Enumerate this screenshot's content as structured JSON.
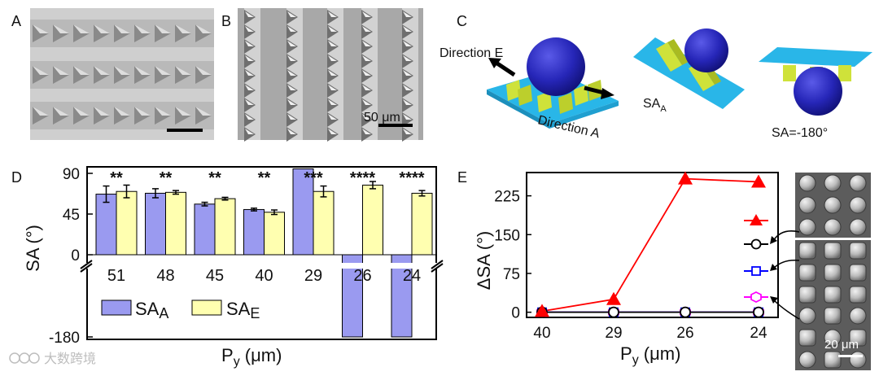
{
  "panels": {
    "a": "A",
    "b": "B",
    "c": "C",
    "d": "D",
    "e": "E"
  },
  "micrograph_b": {
    "scale_label": "50 μm"
  },
  "micrograph_e": {
    "scale_label": "20 μm"
  },
  "schematic": {
    "direction_e": "Direction E",
    "direction_a": "Direction A",
    "sa_a_main": "SA",
    "sa_a_sub": "A",
    "sa_minus": "SA=-180°"
  },
  "watermark": "大数跨境",
  "colors": {
    "sa_a": "#9a9af0",
    "sa_e": "#ffffb0",
    "red": "#ff0000",
    "black": "#000000",
    "blue": "#0000ff",
    "magenta": "#ff00ff",
    "chip_blue": "#29b6e8",
    "pillar_green": "#cfe23a",
    "sphere": "#2828c8"
  },
  "chart_data": [
    {
      "type": "bar",
      "panel": "D",
      "categories": [
        "51",
        "48",
        "45",
        "40",
        "29",
        "26",
        "24"
      ],
      "series": [
        {
          "name": "SA_A",
          "values": [
            67,
            68,
            56,
            50,
            95,
            -180,
            -180
          ],
          "errors": [
            9,
            5,
            2,
            1.5,
            0,
            0,
            0
          ]
        },
        {
          "name": "SA_E",
          "values": [
            70,
            69,
            62,
            47,
            70,
            77,
            68
          ],
          "errors": [
            7,
            2,
            1.5,
            2.5,
            6,
            4,
            3
          ]
        }
      ],
      "significance": [
        "**",
        "**",
        "**",
        "**",
        "***",
        "****",
        "****"
      ],
      "legend": {
        "a_main": "SA",
        "a_sub": "A",
        "e_main": "SA",
        "e_sub": "E"
      },
      "ylabel": "SA (°)",
      "xlabel_main": "P",
      "xlabel_sub": "y",
      "xlabel_unit": " (μm)",
      "yticks": [
        "90",
        "45",
        "0",
        "-180"
      ],
      "ylim": [
        -180,
        90
      ],
      "axis_break": true
    },
    {
      "type": "line",
      "panel": "E",
      "x": [
        "40",
        "29",
        "26",
        "24"
      ],
      "series": [
        {
          "name": "red-triangle",
          "marker": "triangle",
          "values": [
            2,
            25,
            258,
            252
          ]
        },
        {
          "name": "black-circle",
          "marker": "circle",
          "values": [
            0,
            0,
            0,
            0
          ]
        },
        {
          "name": "blue-square",
          "marker": "square",
          "values": [
            0,
            0,
            0,
            0
          ]
        },
        {
          "name": "magenta-hexagon",
          "marker": "hexagon",
          "values": [
            0,
            0,
            0,
            0
          ]
        }
      ],
      "ylabel": "ΔSA (°)",
      "xlabel_main": "P",
      "xlabel_sub": "y",
      "xlabel_unit": " (μm)",
      "yticks": [
        "0",
        "75",
        "150",
        "225"
      ],
      "ylim": [
        -10,
        270
      ]
    }
  ]
}
